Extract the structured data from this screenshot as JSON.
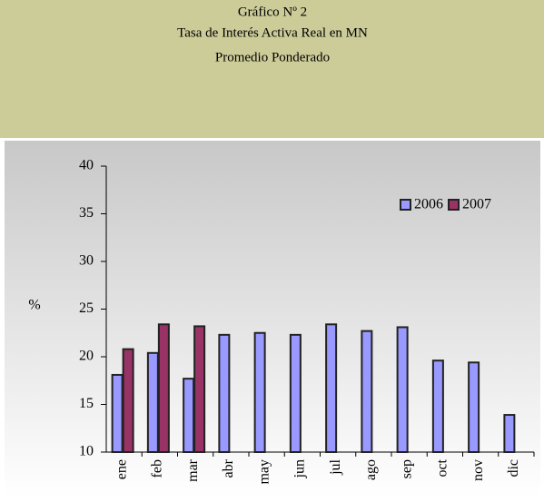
{
  "chart_data": {
    "type": "bar",
    "title": "Gráfico Nº 2",
    "subtitle": "Tasa de Interés Activa Real en MN",
    "subtitle2": "Promedio Ponderado",
    "y_label": "%",
    "categories": [
      "ene",
      "feb",
      "mar",
      "abr",
      "may",
      "jun",
      "jul",
      "ago",
      "sep",
      "oct",
      "nov",
      "dic"
    ],
    "series": [
      {
        "name": "2006",
        "color": "#9999ff",
        "values": [
          18.1,
          20.4,
          17.7,
          22.3,
          22.5,
          22.3,
          23.4,
          22.7,
          23.1,
          19.6,
          19.4,
          13.9
        ]
      },
      {
        "name": "2007",
        "color": "#993366",
        "values": [
          20.8,
          23.4,
          23.2,
          null,
          null,
          null,
          null,
          null,
          null,
          null,
          null,
          null
        ]
      }
    ],
    "ylim": [
      10,
      40
    ],
    "yticks": [
      10,
      15,
      20,
      25,
      30,
      35,
      40
    ],
    "legend": "top-right"
  }
}
